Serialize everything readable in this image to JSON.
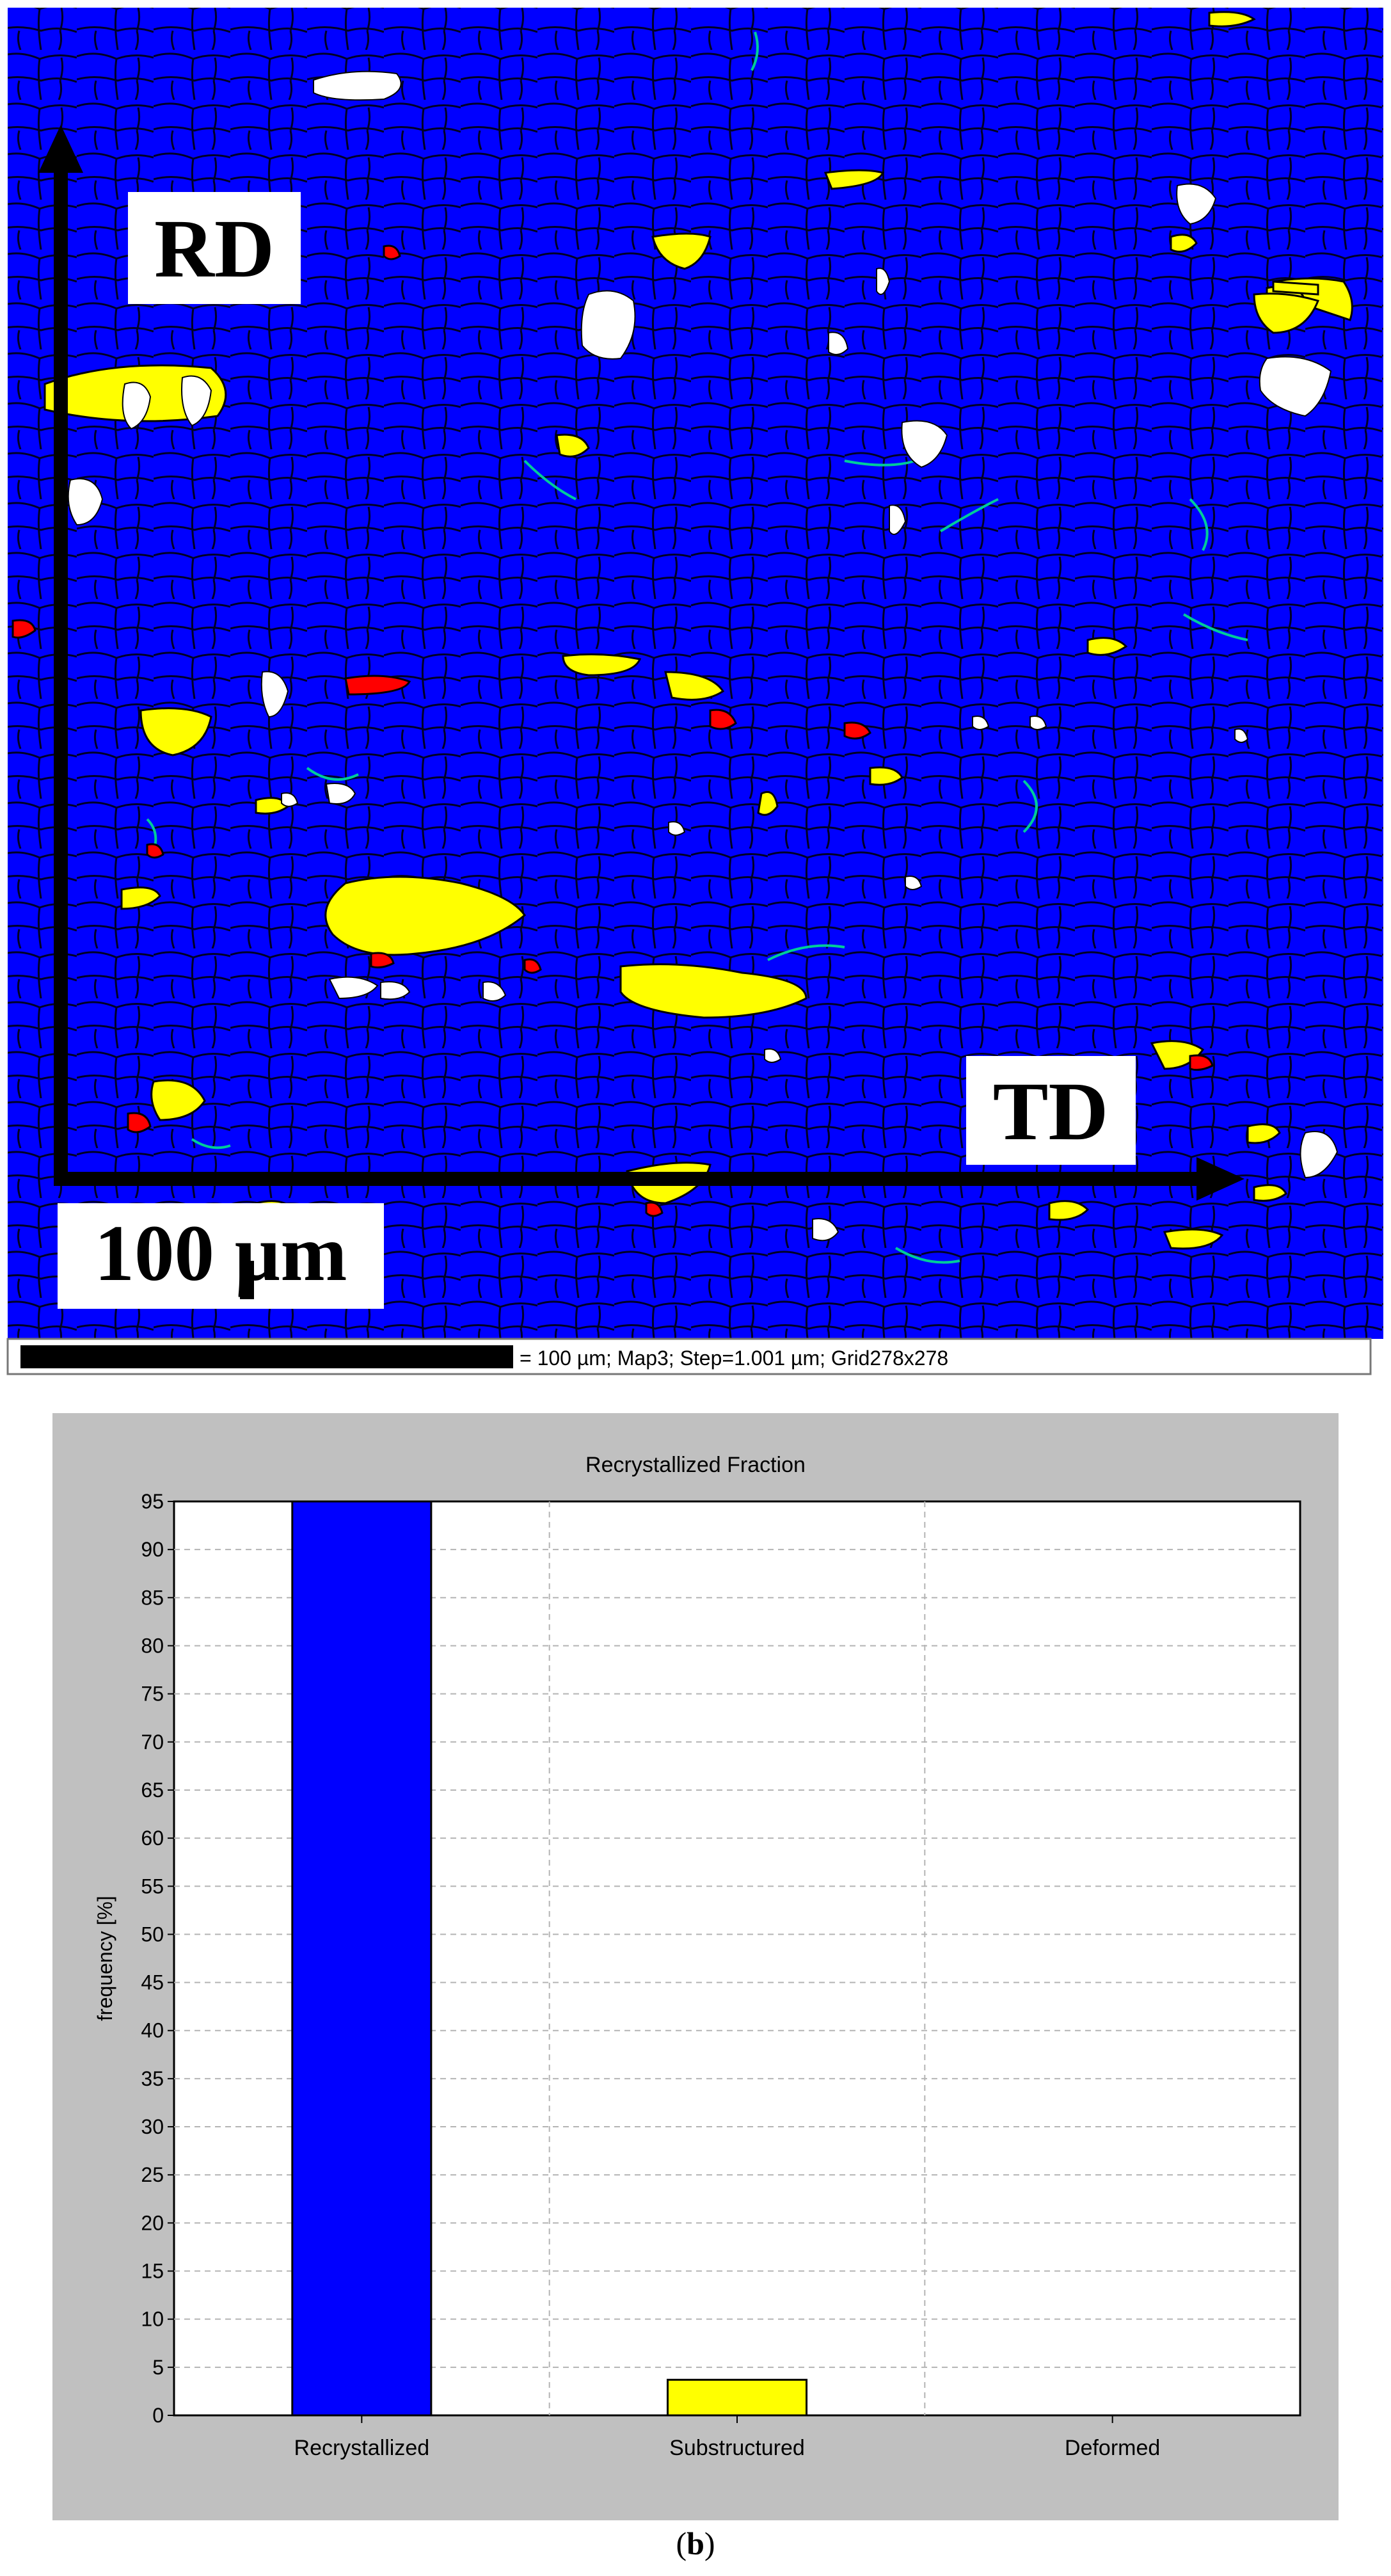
{
  "map": {
    "axis_rd_label": "RD",
    "axis_td_label": "TD",
    "scale_label": "100 µm",
    "status_text": "= 100 µm; Map3; Step=1.001 µm; Grid278x278",
    "colors": {
      "recrystallized": "#0000ff",
      "substructured": "#ffff00",
      "deformed": "#ff0000",
      "unindexed": "#ffffff",
      "grain_boundary": "#000000",
      "low_angle_boundary": "#00cc99"
    }
  },
  "chart_data": {
    "type": "bar",
    "title": "Recrystallized Fraction",
    "xlabel": "",
    "ylabel": "frequency [%]",
    "categories": [
      "Recrystallized",
      "Substructured",
      "Deformed"
    ],
    "values": [
      96,
      3.7,
      0
    ],
    "bar_colors": [
      "#0000ff",
      "#ffff00",
      "#ff0000"
    ],
    "ylim": [
      0,
      95
    ],
    "yticks": [
      "0",
      "5",
      "10",
      "15",
      "20",
      "25",
      "30",
      "35",
      "40",
      "45",
      "50",
      "55",
      "60",
      "65",
      "70",
      "75",
      "80",
      "85",
      "90",
      "95"
    ],
    "grid": true,
    "legend": "none"
  },
  "caption": {
    "open": "(",
    "letter": "b",
    "close": ")"
  }
}
